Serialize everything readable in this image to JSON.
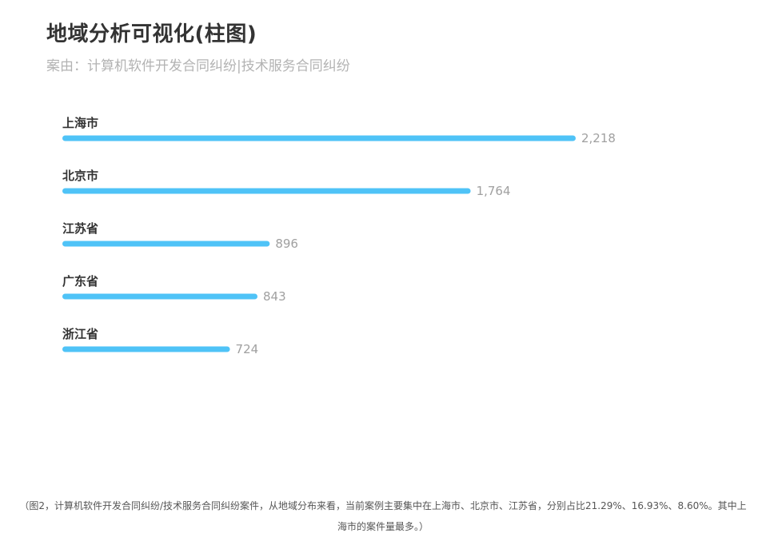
{
  "chart_data": {
    "type": "bar",
    "orientation": "horizontal",
    "title": "地域分析可视化(柱图)",
    "subtitle": "案由：计算机软件开发合同纠纷|技术服务合同纠纷",
    "categories": [
      "上海市",
      "北京市",
      "江苏省",
      "广东省",
      "浙江省"
    ],
    "values": [
      2218,
      1764,
      896,
      843,
      724
    ],
    "value_labels": [
      "2,218",
      "1,764",
      "896",
      "843",
      "724"
    ],
    "xlim": [
      0,
      2218
    ],
    "grid": false,
    "bar_color": "#4fc3f7"
  },
  "caption": {
    "line1": "（图2，计算机软件开发合同纠纷/技术服务合同纠纷案件，从地域分布来看，当前案例主要集中在上海市、北京市、江苏省，分别占比21.29%、16.93%、8.60%。其中上",
    "line2": "海市的案件量最多。）"
  }
}
